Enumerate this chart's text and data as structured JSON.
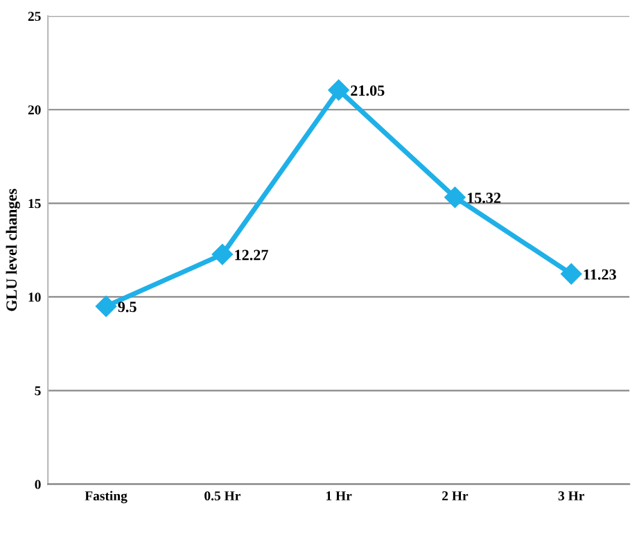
{
  "chart_data": {
    "type": "line",
    "ylabel": "GLU level changes",
    "categories": [
      "Fasting",
      "0.5 Hr",
      "1 Hr",
      "2 Hr",
      "3 Hr"
    ],
    "series": [
      {
        "color": "#1fb0e8",
        "values": [
          9.5,
          12.27,
          21.05,
          15.32,
          11.23
        ]
      }
    ],
    "ylim": [
      0,
      25
    ],
    "yticks": [
      0,
      5,
      10,
      15,
      20,
      25
    ],
    "grid": "y",
    "marker": "diamond",
    "line_style": "solid",
    "data_labels": true
  }
}
